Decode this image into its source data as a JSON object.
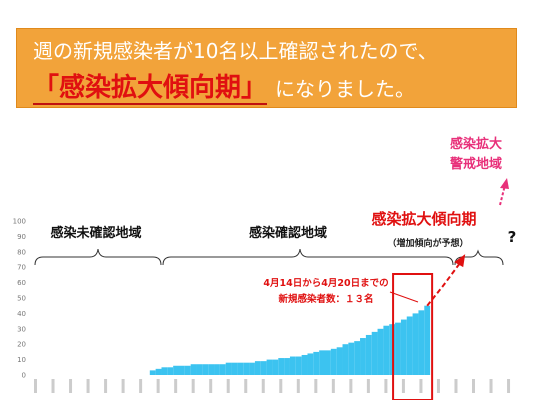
{
  "banner": {
    "line1": "週の新規感染者が10名以上確認されたので、",
    "headline": "「感染拡大傾向期」",
    "suffix": "になりました。"
  },
  "regions": {
    "unconfirmed": "感染未確認地域",
    "confirmed": "感染確認地域",
    "expansion": "感染拡大傾向期",
    "expansion_note": "（増加傾向が予想）",
    "question": "?"
  },
  "alert": {
    "line1": "感染拡大",
    "line2": "警戒地域"
  },
  "callout": {
    "line1": "4月14日から4月20日までの",
    "line2": "新規感染者数：１３名"
  },
  "colors": {
    "bar": "#3cc3f0",
    "accent": "#e01010",
    "alert": "#e8307a",
    "banner": "#f2a33a"
  },
  "chart_data": {
    "type": "bar",
    "ylim": [
      0,
      100
    ],
    "yticks": [
      0,
      10,
      20,
      30,
      40,
      50,
      60,
      70,
      80,
      90,
      100
    ],
    "values": [
      0,
      0,
      0,
      0,
      0,
      0,
      0,
      0,
      0,
      0,
      0,
      0,
      0,
      0,
      0,
      0,
      0,
      0,
      0,
      0,
      3,
      4,
      5,
      5,
      6,
      6,
      6,
      7,
      7,
      7,
      7,
      7,
      7,
      8,
      8,
      8,
      8,
      8,
      9,
      9,
      10,
      10,
      11,
      11,
      12,
      12,
      13,
      14,
      15,
      16,
      16,
      17,
      18,
      20,
      21,
      22,
      24,
      26,
      28,
      30,
      32,
      33,
      34,
      36,
      38,
      40,
      42,
      45,
      0,
      0,
      0,
      0,
      0,
      0,
      0,
      0,
      0,
      0,
      0,
      0,
      0,
      0,
      0
    ],
    "highlight_range": [
      62,
      67
    ],
    "projection": [
      45,
      58,
      72
    ],
    "grid": false
  }
}
